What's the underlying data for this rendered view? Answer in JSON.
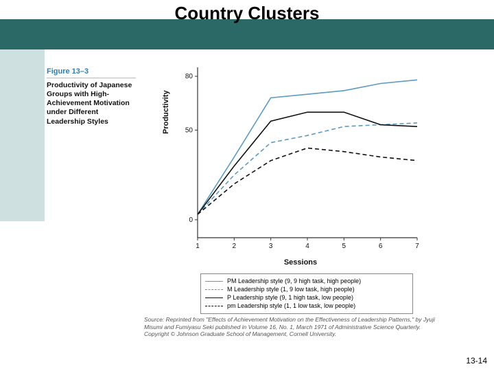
{
  "title": "Country Clusters",
  "header": {
    "bg_color": "#2b6967"
  },
  "sidebar": {
    "bg_color": "#cfe0e1"
  },
  "figure_label": {
    "number": "Figure 13–3",
    "num_color": "#2d7fb5",
    "caption": "Productivity of Japanese Groups with High-Achievement Motivation under Different Leadership Styles"
  },
  "chart": {
    "type": "line",
    "x": [
      1,
      2,
      3,
      4,
      5,
      6,
      7
    ],
    "xlabel": "Sessions",
    "ylabel": "Productivity",
    "yticks": [
      0,
      50,
      80
    ],
    "ylim": [
      -10,
      85
    ],
    "axis_color": "#333333",
    "series": [
      {
        "name": "PM Leadership style (9, 9 high task, high people)",
        "color": "#5a9bc4",
        "dash": "solid",
        "y": [
          3,
          35,
          68,
          70,
          72,
          76,
          78
        ]
      },
      {
        "name": "M Leadership style (1, 9 low task, high people)",
        "color": "#5a9bc4",
        "dash": "dashed",
        "y": [
          3,
          25,
          43,
          47,
          52,
          53,
          54
        ]
      },
      {
        "name": "P Leadership style (9, 1 high task, low people)",
        "color": "#111111",
        "dash": "solid",
        "y": [
          3,
          30,
          55,
          60,
          60,
          53,
          52
        ]
      },
      {
        "name": "pm Leadership style (1, 1 low task, low people)",
        "color": "#111111",
        "dash": "dashed",
        "y": [
          3,
          20,
          33,
          40,
          38,
          35,
          33
        ]
      }
    ]
  },
  "legend_border": "#888888",
  "source": "Source: Reprinted from \"Effects of Achievement Motivation on the Effectiveness of Leadership Patterns,\" by Jyuji Misumi and Fumiyasu Seki published in Volume 16, No. 1, March 1971 of Administrative Science Quarterly. Copyright © Johnson Graduate School of Management, Cornell University.",
  "page_number": "13-14"
}
